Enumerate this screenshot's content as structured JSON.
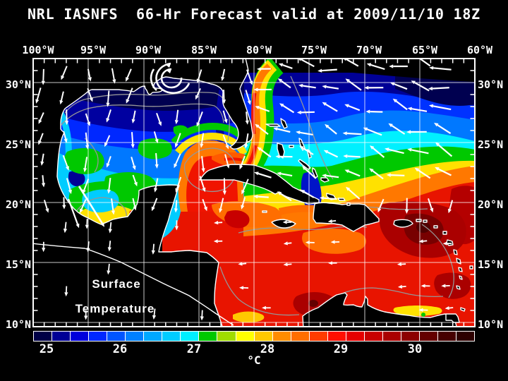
{
  "title": "NRL IASNFS  66-Hr Forecast valid at 2009/11/10 18Z",
  "axes": {
    "longitude": [
      "100°W",
      "95°W",
      "90°W",
      "85°W",
      "80°W",
      "75°W",
      "70°W",
      "65°W",
      "60°W"
    ],
    "latitude": [
      "30°N",
      "25°N",
      "20°N",
      "15°N",
      "10°N"
    ]
  },
  "annotation": {
    "line1": "Surface",
    "line2": "Temperature"
  },
  "colorbar": {
    "unit": "°C",
    "tick_labels": [
      "25",
      "26",
      "27",
      "28",
      "29",
      "30"
    ],
    "colors": [
      "#000046",
      "#000096",
      "#0000DC",
      "#0028FF",
      "#0055FF",
      "#0080FF",
      "#00A8FF",
      "#00CCFF",
      "#00F0FF",
      "#00C800",
      "#A0DC00",
      "#FFFF00",
      "#FFC800",
      "#FF8C00",
      "#FF6E00",
      "#FF3C00",
      "#FF0F00",
      "#E60000",
      "#C80000",
      "#AA0000",
      "#8C0000",
      "#640000",
      "#460000",
      "#2D0000"
    ]
  },
  "chart_data": {
    "type": "heatmap",
    "title": "NRL IASNFS 66-Hr Forecast valid at 2009/11/10 18Z",
    "variable": "Surface Temperature",
    "unit": "°C",
    "lon_ticks": [
      "100°W",
      "95°W",
      "90°W",
      "85°W",
      "80°W",
      "75°W",
      "70°W",
      "65°W",
      "60°W"
    ],
    "lat_ticks": [
      "30°N",
      "25°N",
      "20°N",
      "15°N",
      "10°N"
    ],
    "colorbar_ticks": [
      25,
      26,
      27,
      28,
      29,
      30
    ],
    "legend_position": "bottom"
  }
}
